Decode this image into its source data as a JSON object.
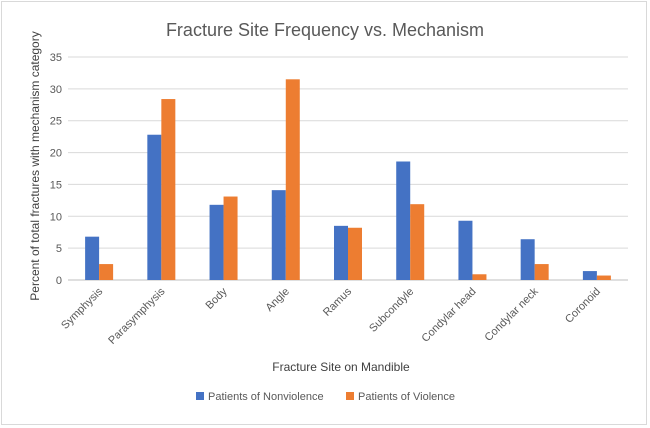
{
  "chart_data": {
    "type": "bar",
    "title": "Fracture Site Frequency vs. Mechanism",
    "xlabel": "Fracture Site on Mandible",
    "ylabel": "Percent of total fractures with mechanism category",
    "categories": [
      "Symphysis",
      "Parasymphysis",
      "Body",
      "Angle",
      "Ramus",
      "Subcondyle",
      "Condylar head",
      "Condylar neck",
      "Coronoid"
    ],
    "series": [
      {
        "name": "Patients of Nonviolence",
        "color": "#4472C4",
        "values": [
          6.8,
          22.8,
          11.8,
          14.1,
          8.5,
          18.6,
          9.3,
          6.4,
          1.4
        ]
      },
      {
        "name": "Patients of Violence",
        "color": "#ED7D31",
        "values": [
          2.5,
          28.4,
          13.1,
          31.5,
          8.2,
          11.9,
          0.9,
          2.5,
          0.7
        ]
      }
    ],
    "ylim": [
      0,
      35
    ],
    "yticks": [
      0,
      5,
      10,
      15,
      20,
      25,
      30,
      35
    ],
    "grid": true,
    "legend_position": "bottom"
  }
}
